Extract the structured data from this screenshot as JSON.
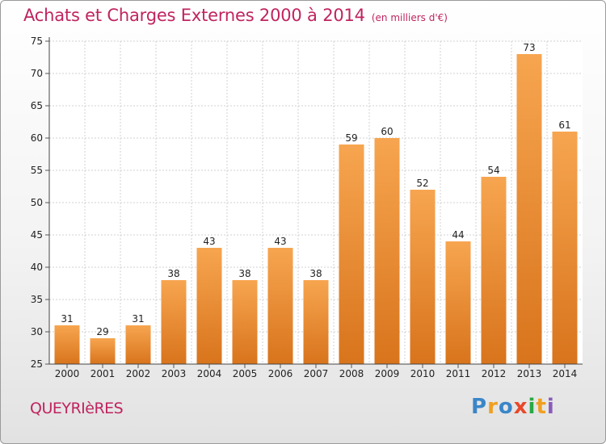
{
  "title": "Achats et Charges Externes 2000 à 2014",
  "subtitle": "(en milliers d'€)",
  "commune": "QUEYRIèRES",
  "logo": "Proxiti",
  "colors": {
    "bar_top": "#f7a550",
    "bar_bottom": "#d8741c",
    "title": "#c0245f",
    "grid": "#d0d0d0"
  },
  "chart_data": {
    "type": "bar",
    "title": "Achats et Charges Externes 2000 à 2014",
    "subtitle": "(en milliers d'€)",
    "categories": [
      "2000",
      "2001",
      "2002",
      "2003",
      "2004",
      "2005",
      "2006",
      "2007",
      "2008",
      "2009",
      "2010",
      "2011",
      "2012",
      "2013",
      "2014"
    ],
    "values": [
      31,
      29,
      31,
      38,
      43,
      38,
      43,
      38,
      59,
      60,
      52,
      44,
      54,
      73,
      61
    ],
    "ylim": [
      25,
      75
    ],
    "yticks": [
      25,
      30,
      35,
      40,
      45,
      50,
      55,
      60,
      65,
      70,
      75
    ],
    "grid": true,
    "xlabel": "",
    "ylabel": ""
  }
}
